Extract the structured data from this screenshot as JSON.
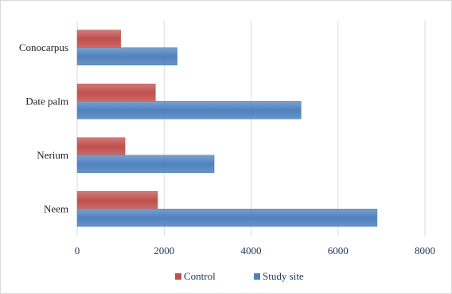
{
  "chart_data": {
    "type": "bar",
    "orientation": "horizontal",
    "categories": [
      "Conocarpus",
      "Date palm",
      "Nerium",
      "Neem"
    ],
    "series": [
      {
        "name": "Control",
        "color": "#c0504d",
        "values": [
          1000,
          1800,
          1100,
          1850
        ]
      },
      {
        "name": "Study site",
        "color": "#4f81bd",
        "values": [
          2300,
          5150,
          3150,
          6900
        ]
      }
    ],
    "xlim": [
      0,
      8000
    ],
    "xticks": [
      0,
      2000,
      4000,
      6000,
      8000
    ],
    "grid": true,
    "legend_position": "bottom"
  }
}
